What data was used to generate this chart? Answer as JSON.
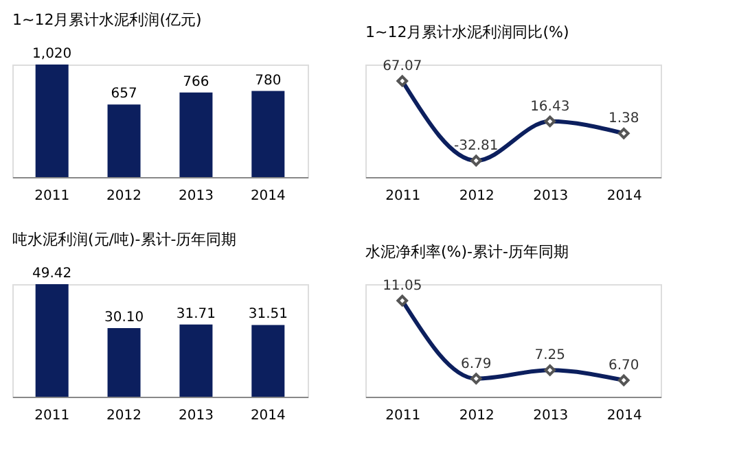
{
  "chart_data": [
    {
      "type": "bar",
      "title": "1~12月累计水泥利润(亿元)",
      "categories": [
        "2011",
        "2012",
        "2013",
        "2014"
      ],
      "values": [
        1020,
        657,
        766,
        780
      ],
      "value_labels": [
        "1,020",
        "657",
        "766",
        "780"
      ],
      "color": "#0c1f5e",
      "tick_labels": "x",
      "grid": false
    },
    {
      "type": "line",
      "title": "1~12月累计水泥利润同比(%)",
      "categories": [
        "2011",
        "2012",
        "2013",
        "2014"
      ],
      "values": [
        67.07,
        -32.81,
        16.43,
        1.38
      ],
      "value_labels": [
        "67.07",
        "-32.81",
        "16.43",
        "1.38"
      ],
      "color": "#0c1f5e",
      "marker": "diamond",
      "tick_labels": "x",
      "grid": false
    },
    {
      "type": "bar",
      "title": "吨水泥利润(元/吨)-累计-历年同期",
      "categories": [
        "2011",
        "2012",
        "2013",
        "2014"
      ],
      "values": [
        49.42,
        30.1,
        31.71,
        31.51
      ],
      "value_labels": [
        "49.42",
        "30.10",
        "31.71",
        "31.51"
      ],
      "color": "#0c1f5e",
      "tick_labels": "x",
      "grid": false
    },
    {
      "type": "line",
      "title": "水泥净利率(%)-累计-历年同期",
      "categories": [
        "2011",
        "2012",
        "2013",
        "2014"
      ],
      "values": [
        11.05,
        6.79,
        7.25,
        6.7
      ],
      "value_labels": [
        "11.05",
        "6.79",
        "7.25",
        "6.70"
      ],
      "color": "#0c1f5e",
      "marker": "diamond",
      "tick_labels": "x",
      "grid": false
    }
  ]
}
